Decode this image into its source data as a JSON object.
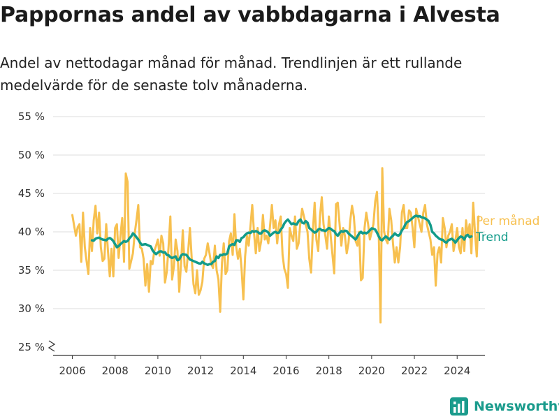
{
  "header": {
    "title": "Pappornas andel av vabbdagarna i Alvesta",
    "subtitle": "Andel av nettodagar månad för månad. Trendlinjen är ett rullande medelvärde för de senaste tolv månaderna."
  },
  "brand": {
    "name": "Newsworthy",
    "logo_icon": "bar-chart-logo-icon",
    "color": "#1a9b8c"
  },
  "chart_data": {
    "type": "line",
    "ylim": [
      25,
      55
    ],
    "y_ticks": [
      25,
      30,
      35,
      40,
      45,
      50,
      55
    ],
    "y_tick_suffix": " %",
    "y_axis_break": true,
    "x_ticks": [
      2006,
      2008,
      2010,
      2012,
      2014,
      2016,
      2018,
      2020,
      2022,
      2024
    ],
    "xlim": [
      2005.1,
      2025.3
    ],
    "grid": true,
    "legend": "right",
    "series": [
      {
        "name": "Per månad",
        "color": "#f7c04f",
        "x_start": 2006.0,
        "x_step": 0.0833333,
        "values": [
          42.2,
          40.8,
          39.5,
          40.6,
          41.0,
          36.1,
          42.5,
          38.0,
          36.2,
          34.5,
          40.5,
          37.5,
          41.5,
          43.4,
          39.8,
          42.5,
          38.0,
          36.2,
          36.5,
          41.0,
          37.5,
          34.2,
          37.8,
          34.2,
          40.5,
          41.0,
          36.6,
          39.5,
          41.8,
          36.1,
          47.6,
          46.5,
          35.2,
          36.2,
          37.2,
          39.8,
          41.5,
          43.5,
          38.0,
          37.8,
          36.5,
          33.0,
          35.8,
          32.2,
          36.2,
          35.8,
          37.5,
          38.2,
          39.0,
          36.9,
          39.5,
          38.5,
          33.4,
          34.8,
          38.0,
          42.0,
          33.8,
          35.5,
          39.0,
          37.5,
          32.2,
          35.9,
          40.2,
          35.5,
          34.8,
          37.5,
          40.5,
          36.5,
          33.2,
          32.0,
          35.0,
          31.8,
          32.4,
          33.5,
          36.5,
          37.0,
          38.5,
          37.2,
          35.8,
          35.3,
          38.2,
          35.0,
          33.8,
          29.6,
          36.0,
          38.5,
          34.5,
          35.0,
          38.8,
          39.8,
          37.0,
          42.3,
          38.0,
          36.5,
          37.8,
          35.2,
          31.2,
          36.8,
          39.5,
          38.2,
          40.8,
          43.5,
          39.8,
          37.2,
          40.5,
          37.5,
          38.8,
          42.2,
          39.0,
          39.5,
          38.5,
          40.8,
          43.5,
          40.5,
          41.5,
          38.5,
          41.0,
          42.0,
          37.0,
          35.2,
          34.5,
          32.7,
          40.5,
          39.5,
          38.8,
          42.0,
          37.8,
          38.5,
          41.2,
          43.0,
          42.0,
          41.0,
          40.0,
          36.5,
          34.7,
          40.0,
          43.8,
          39.0,
          37.5,
          42.0,
          44.5,
          41.0,
          39.5,
          37.8,
          42.0,
          39.5,
          37.0,
          34.6,
          43.6,
          43.8,
          41.0,
          38.2,
          40.5,
          39.5,
          37.2,
          38.5,
          41.5,
          43.4,
          42.0,
          38.8,
          38.2,
          40.0,
          33.7,
          34.0,
          40.5,
          42.5,
          41.0,
          39.0,
          40.0,
          41.0,
          44.0,
          45.2,
          40.0,
          28.2,
          48.3,
          40.0,
          39.0,
          38.5,
          43.0,
          41.5,
          38.5,
          36.0,
          38.0,
          36.0,
          38.0,
          42.5,
          43.5,
          40.5,
          40.5,
          42.8,
          42.5,
          40.5,
          38.0,
          43.0,
          42.0,
          41.0,
          40.0,
          42.5,
          43.5,
          41.0,
          40.0,
          39.0,
          37.0,
          38.0,
          33.0,
          37.2,
          38.0,
          36.0,
          41.8,
          40.5,
          38.0,
          39.5,
          40.0,
          41.0,
          37.5,
          38.8,
          40.5,
          38.0,
          37.2,
          40.5,
          37.5,
          41.5,
          39.5,
          41.0,
          37.2,
          43.8,
          40.0,
          36.8,
          42.0
        ]
      },
      {
        "name": "Trend",
        "color": "#129b8a",
        "x_start": 2006.9167,
        "x_step": 0.0833333,
        "values": [
          38.9,
          38.85,
          39.1,
          39.2,
          39.25,
          39.1,
          39.0,
          38.95,
          38.9,
          39.1,
          39.2,
          39.05,
          38.8,
          38.4,
          38.0,
          38.15,
          38.4,
          38.6,
          38.8,
          38.7,
          38.8,
          39.15,
          39.4,
          39.8,
          39.6,
          39.3,
          39.0,
          38.6,
          38.3,
          38.35,
          38.4,
          38.3,
          38.2,
          38.1,
          37.6,
          37.3,
          37.1,
          37.3,
          37.45,
          37.45,
          37.3,
          37.35,
          37.0,
          36.95,
          36.7,
          36.6,
          36.7,
          36.8,
          36.3,
          36.4,
          36.9,
          37.1,
          37.05,
          37.0,
          36.7,
          36.4,
          36.3,
          36.2,
          36.1,
          36.0,
          35.9,
          35.85,
          36.1,
          35.9,
          35.8,
          35.7,
          35.8,
          35.8,
          36.1,
          36.2,
          36.8,
          36.6,
          37.0,
          36.95,
          37.1,
          37.05,
          37.2,
          38.1,
          38.3,
          38.4,
          38.3,
          38.9,
          38.9,
          38.7,
          39.2,
          39.3,
          39.6,
          39.8,
          39.9,
          39.85,
          40.1,
          40.0,
          40.1,
          40.0,
          39.8,
          39.8,
          40.1,
          40.2,
          40.1,
          39.9,
          39.5,
          39.7,
          39.9,
          40.0,
          39.85,
          39.9,
          40.3,
          40.6,
          41.1,
          41.4,
          41.6,
          41.3,
          41.0,
          41.1,
          41.0,
          40.95,
          41.4,
          41.6,
          41.2,
          41.1,
          41.4,
          41.2,
          40.5,
          40.3,
          40.1,
          39.9,
          40.0,
          40.3,
          40.4,
          40.2,
          40.2,
          40.1,
          40.3,
          40.5,
          40.4,
          40.2,
          40.1,
          39.7,
          39.5,
          39.85,
          40.1,
          40.0,
          40.15,
          40.1,
          39.8,
          39.6,
          39.4,
          39.2,
          39.0,
          39.4,
          39.8,
          40.0,
          39.8,
          39.9,
          39.8,
          39.95,
          40.2,
          40.45,
          40.4,
          40.3,
          39.9,
          39.4,
          39.0,
          38.9,
          39.2,
          39.4,
          39.2,
          39.0,
          39.3,
          39.5,
          39.8,
          39.6,
          39.5,
          39.7,
          40.2,
          40.5,
          41.0,
          41.3,
          41.4,
          41.6,
          41.8,
          42.0,
          42.1,
          42.0,
          42.05,
          41.9,
          41.85,
          41.75,
          41.6,
          41.4,
          40.9,
          40.0,
          39.8,
          39.5,
          39.3,
          39.1,
          39.0,
          38.95,
          38.7,
          38.6,
          38.9,
          39.0,
          39.1,
          38.9,
          38.6,
          38.9,
          39.2,
          39.4,
          39.3,
          39.0,
          39.5,
          39.6,
          39.3,
          39.4
        ]
      }
    ]
  }
}
